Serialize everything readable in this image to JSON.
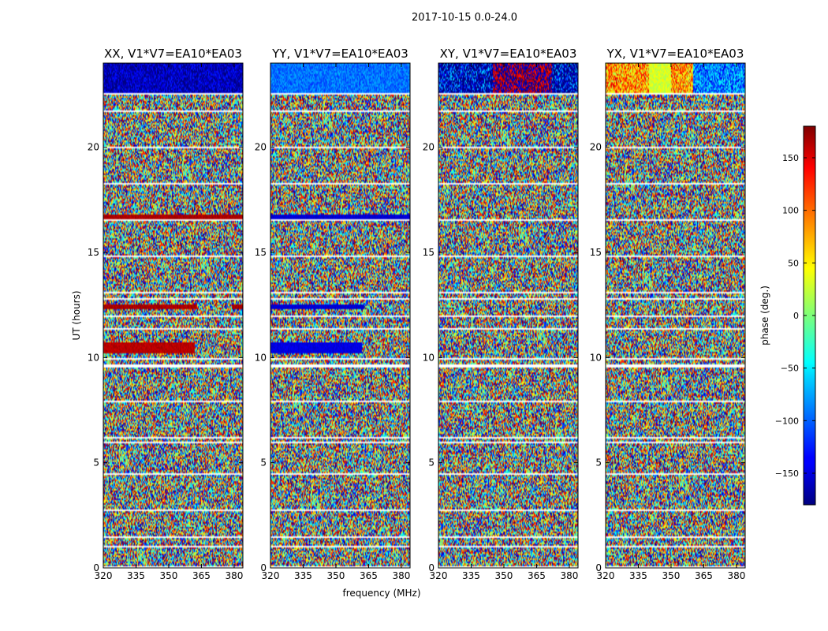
{
  "chart_data": {
    "type": "heatmap",
    "suptitle": "2017-10-15 0.0-24.0",
    "xlabel": "frequency (MHz)",
    "ylabel": "UT (hours)",
    "xlim": [
      320,
      384
    ],
    "ylim": [
      0,
      24
    ],
    "xticks": [
      320,
      335,
      350,
      365,
      380
    ],
    "yticks": [
      0,
      5,
      10,
      15,
      20
    ],
    "panels": [
      {
        "title": "XX, V1*V7=EA10*EA03",
        "baseline_phase_deg": -160,
        "band_noise_deg": 40,
        "coherent_bands": [
          {
            "t0": 10.2,
            "t1": 10.7,
            "f0": 320,
            "f1": 362,
            "phase": 160
          },
          {
            "t0": 12.3,
            "t1": 12.55,
            "f0": 320,
            "f1": 363,
            "phase": 165
          },
          {
            "t0": 12.3,
            "t1": 12.55,
            "f0": 379,
            "f1": 384,
            "phase": 165
          },
          {
            "t0": 16.5,
            "t1": 16.8,
            "f0": 320,
            "f1": 384,
            "phase": 165
          }
        ]
      },
      {
        "title": "YY, V1*V7=EA10*EA03",
        "baseline_phase_deg": -95,
        "band_noise_deg": 25,
        "coherent_bands": [
          {
            "t0": 10.2,
            "t1": 10.7,
            "f0": 320,
            "f1": 362,
            "phase": -145
          },
          {
            "t0": 12.3,
            "t1": 12.55,
            "f0": 320,
            "f1": 363,
            "phase": -150
          },
          {
            "t0": 16.5,
            "t1": 16.8,
            "f0": 320,
            "f1": 384,
            "phase": -150
          }
        ]
      },
      {
        "title": "XY, V1*V7=EA10*EA03",
        "baseline_phase_deg": -170,
        "band_noise_deg": 120,
        "coherent_bands": []
      },
      {
        "title": "YX, V1*V7=EA10*EA03",
        "baseline_phase_deg": 80,
        "band_noise_deg": 70,
        "coherent_bands": []
      }
    ],
    "top_band_hours": [
      22.6,
      24
    ],
    "flagged_rows_hours": [
      0.05,
      1.5,
      6.0,
      9.6,
      10.0,
      12.0,
      12.8,
      22.6
    ],
    "colorbar": {
      "label": "phase (deg.)",
      "range": [
        -180,
        180
      ],
      "ticks": [
        150,
        100,
        50,
        0,
        -50,
        -100,
        -150
      ],
      "colormap": "jet"
    }
  }
}
